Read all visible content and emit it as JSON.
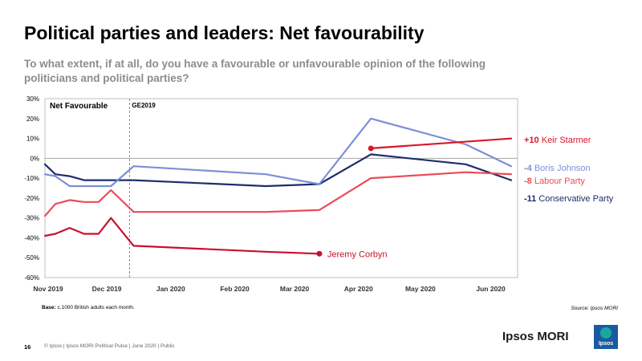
{
  "slide": {
    "title": "Political parties and leaders: Net favourability",
    "subtitle": "To what extent, if at all, do you have a favourable or unfavourable opinion of the following politicians and political parties?",
    "base_label": "Base:",
    "base_text": " c.1000 British adults each month.",
    "source": "Source: Ipsos MORI",
    "page_number": "16",
    "footer": "© Ipsos | Ipsos MORI Political Pulse | June 2020 | Public",
    "brand": "Ipsos MORI",
    "logo_text": "Ipsos"
  },
  "colors": {
    "starmer": "#d7182a",
    "corbyn": "#c8102e",
    "labour": "#ec4a58",
    "johnson": "#7b8fd8",
    "conservative": "#1f2d6b",
    "zero_line": "#999999",
    "plot_border": "#bfbfbf",
    "label_gray": "#595959",
    "logo_blue": "#1a5aa0",
    "logo_teal": "#18a8a0"
  },
  "chart_data": {
    "type": "line",
    "title": "Net Favourable",
    "reference_line": "GE2019",
    "x_ticks": [
      "Nov 2019",
      "Dec 2019",
      "Jan 2020",
      "Feb 2020",
      "Mar 2020",
      "Apr 2020",
      "May 2020",
      "Jun 2020"
    ],
    "y_ticks": [
      "30%",
      "20%",
      "10%",
      "0%",
      "-10%",
      "-20%",
      "-30%",
      "-40%",
      "-50%",
      "-60%"
    ],
    "ylim": [
      -60,
      30
    ],
    "grid": false,
    "series": [
      {
        "name": "Keir Starmer",
        "key": "starmer",
        "end_value": "+10",
        "points": [
          [
            "2020-04-07",
            5
          ],
          [
            "2020-06-14",
            10
          ]
        ],
        "start_marker": true,
        "end_marker": false
      },
      {
        "name": "Boris Johnson",
        "key": "johnson",
        "end_value": "-4",
        "points": [
          [
            "2019-11-01",
            -8
          ],
          [
            "2019-11-06",
            -9
          ],
          [
            "2019-11-13",
            -14
          ],
          [
            "2019-11-20",
            -14
          ],
          [
            "2019-11-27",
            -14
          ],
          [
            "2019-12-03",
            -14
          ],
          [
            "2019-12-14",
            -4
          ],
          [
            "2020-02-16",
            -8
          ],
          [
            "2020-03-13",
            -13
          ],
          [
            "2020-04-07",
            20
          ],
          [
            "2020-05-23",
            7
          ],
          [
            "2020-06-14",
            -4
          ]
        ],
        "start_marker": false,
        "end_marker": false
      },
      {
        "name": "Labour Party",
        "key": "labour",
        "end_value": "-8",
        "points": [
          [
            "2019-11-01",
            -29
          ],
          [
            "2019-11-06",
            -23
          ],
          [
            "2019-11-13",
            -21
          ],
          [
            "2019-11-20",
            -22
          ],
          [
            "2019-11-27",
            -22
          ],
          [
            "2019-12-03",
            -16
          ],
          [
            "2019-12-14",
            -27
          ],
          [
            "2020-02-16",
            -27
          ],
          [
            "2020-03-13",
            -26
          ],
          [
            "2020-04-07",
            -10
          ],
          [
            "2020-05-23",
            -7
          ],
          [
            "2020-06-14",
            -8
          ]
        ],
        "start_marker": false,
        "end_marker": false
      },
      {
        "name": "Conservative  Party",
        "key": "conservative",
        "end_value": "-11",
        "points": [
          [
            "2019-11-01",
            -3
          ],
          [
            "2019-11-06",
            -8
          ],
          [
            "2019-11-13",
            -9
          ],
          [
            "2019-11-20",
            -11
          ],
          [
            "2019-11-27",
            -11
          ],
          [
            "2019-12-03",
            -11
          ],
          [
            "2019-12-14",
            -11
          ],
          [
            "2020-02-16",
            -14
          ],
          [
            "2020-03-13",
            -13
          ],
          [
            "2020-04-07",
            2
          ],
          [
            "2020-05-23",
            -3
          ],
          [
            "2020-06-14",
            -11
          ]
        ],
        "start_marker": false,
        "end_marker": false
      },
      {
        "name": "Jeremy Corbyn",
        "key": "corbyn",
        "end_value": "",
        "points": [
          [
            "2019-11-01",
            -39
          ],
          [
            "2019-11-06",
            -38
          ],
          [
            "2019-11-13",
            -35
          ],
          [
            "2019-11-20",
            -38
          ],
          [
            "2019-11-27",
            -38
          ],
          [
            "2019-12-03",
            -30
          ],
          [
            "2019-12-14",
            -44
          ],
          [
            "2020-02-16",
            -47
          ],
          [
            "2020-03-13",
            -48
          ]
        ],
        "start_marker": false,
        "end_marker": true
      }
    ]
  }
}
